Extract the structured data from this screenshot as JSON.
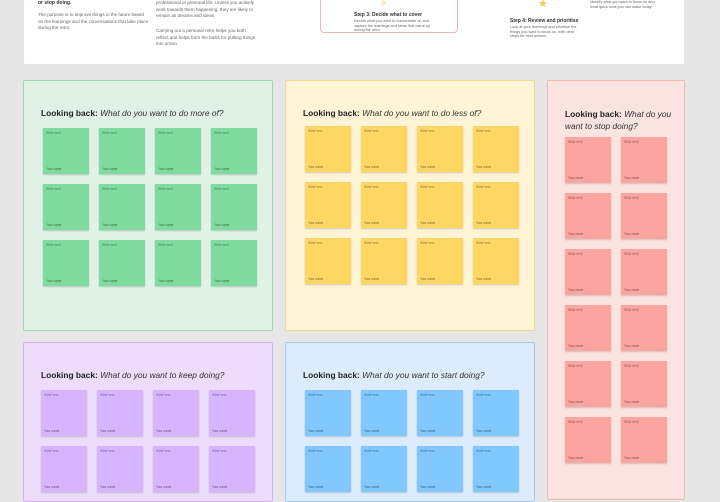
{
  "top": {
    "col1_heading": "or stop doing.",
    "col1_text": "The purpose is to improve things in the future based on the learnings and the conversations that take place during the retro.",
    "col2_text_a": "professional or personal life. Unless you actively work towards them happening, they are likely to remain as dreams and ideas.",
    "col2_text_b": "Carrying out a personal retro helps you both reflect and helps form the basis for putting things into action.",
    "step3_title": "Step 3: Decide what to cover",
    "step3_text": "Decide what you want to concentrate on and capture the learnings and ideas that came up during the retro.",
    "step4_title": "Step 4: Review and prioritise",
    "step4_text": "Look at your learnings and prioritise the things you want to focus on, with clear steps for next actions.",
    "step4_right_text": "Identify what you want to focus on and what quick wins you can make today.",
    "star_icon": "star-icon"
  },
  "frames": {
    "more": {
      "bold": "Looking back:",
      "italic": "What do you want to do more of?",
      "color": "#80dba0"
    },
    "less": {
      "bold": "Looking back:",
      "italic": "What do you want to do less of?",
      "color": "#fdd663"
    },
    "stop": {
      "bold": "Looking back:",
      "italic": "What do you want to stop doing?",
      "color": "#fca5a0"
    },
    "keep": {
      "bold": "Looking back:",
      "italic": "What do you want to keep doing?",
      "color": "#d8b4fe"
    },
    "start": {
      "bold": "Looking back:",
      "italic": "What do you want to start doing?",
      "color": "#80c8fd"
    }
  },
  "note": {
    "placeholder": "Write here",
    "author": "Your name"
  }
}
